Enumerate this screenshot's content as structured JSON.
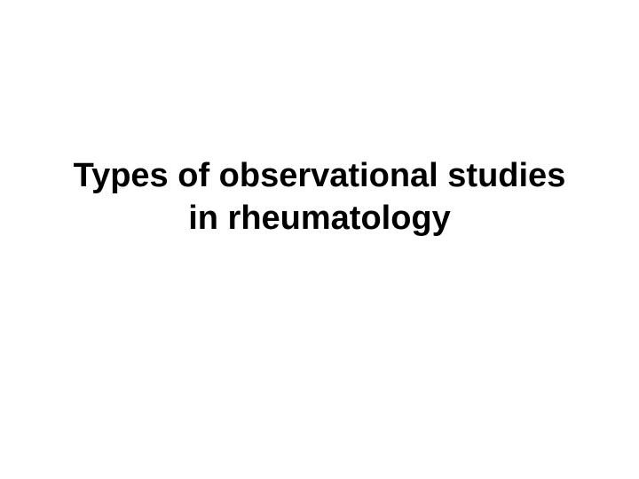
{
  "slide": {
    "title_line1": "Types of observational studies",
    "title_line2": "in rheumatology",
    "background_color": "#ffffff",
    "text_color": "#000000",
    "font_size": 38,
    "font_weight": "bold",
    "font_family": "Arial, Helvetica, sans-serif"
  }
}
